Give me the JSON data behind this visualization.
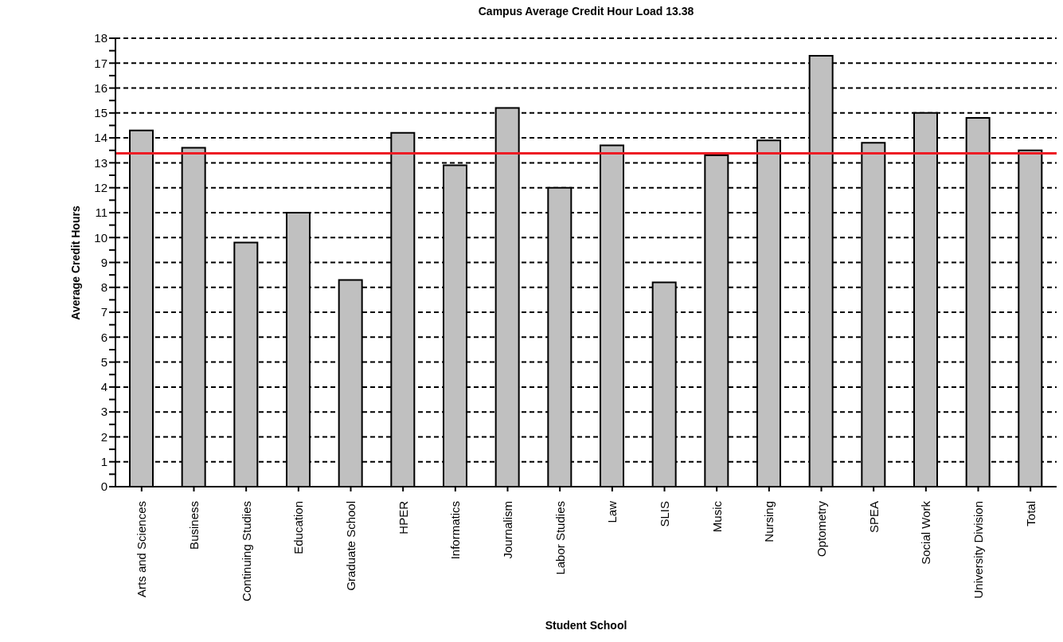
{
  "chart_data": {
    "type": "bar",
    "title": "Campus Average Credit Hour Load 13.38",
    "xlabel": "Student School",
    "ylabel": "Average Credit Hours",
    "categories": [
      "Arts and Sciences",
      "Business",
      "Continuing Studies",
      "Education",
      "Graduate School",
      "HPER",
      "Informatics",
      "Journalism",
      "Labor Studies",
      "Law",
      "SLIS",
      "Music",
      "Nursing",
      "Optometry",
      "SPEA",
      "Social Work",
      "University Division",
      "Total"
    ],
    "values": [
      14.3,
      13.6,
      9.8,
      11.0,
      8.3,
      14.2,
      12.9,
      15.2,
      12.0,
      13.7,
      8.2,
      13.3,
      13.9,
      17.3,
      13.8,
      15.0,
      14.8,
      13.5
    ],
    "color": "#c0c0c0",
    "ylim": [
      0,
      18
    ],
    "yticks": [
      0,
      {
        "value": 0.5,
        "label": null
      },
      1,
      {
        "value": 1.5,
        "label": null
      },
      2,
      {
        "value": 2.5,
        "label": null
      },
      3,
      {
        "value": 3.5,
        "label": null
      },
      4,
      {
        "value": 4.5,
        "label": null
      },
      5,
      {
        "value": 5.5,
        "label": null
      },
      6,
      {
        "value": 6.5,
        "label": null
      },
      7,
      {
        "value": 7.5,
        "label": null
      },
      8,
      {
        "value": 8.5,
        "label": null
      },
      9,
      {
        "value": 9.5,
        "label": null
      },
      10,
      {
        "value": 10.5,
        "label": null
      },
      11,
      {
        "value": 11.5,
        "label": null
      },
      12,
      {
        "value": 12.5,
        "label": null
      },
      13,
      {
        "value": 13.5,
        "label": null
      },
      14,
      {
        "value": 14.5,
        "label": null
      },
      15,
      {
        "value": 15.5,
        "label": null
      },
      16,
      {
        "value": 16.5,
        "label": null
      },
      17,
      {
        "value": 17.5,
        "label": null
      },
      18
    ],
    "grid": "y",
    "ref_lines": [
      {
        "axis": "y",
        "value": 13.38,
        "color": "#ed1c24"
      }
    ]
  }
}
